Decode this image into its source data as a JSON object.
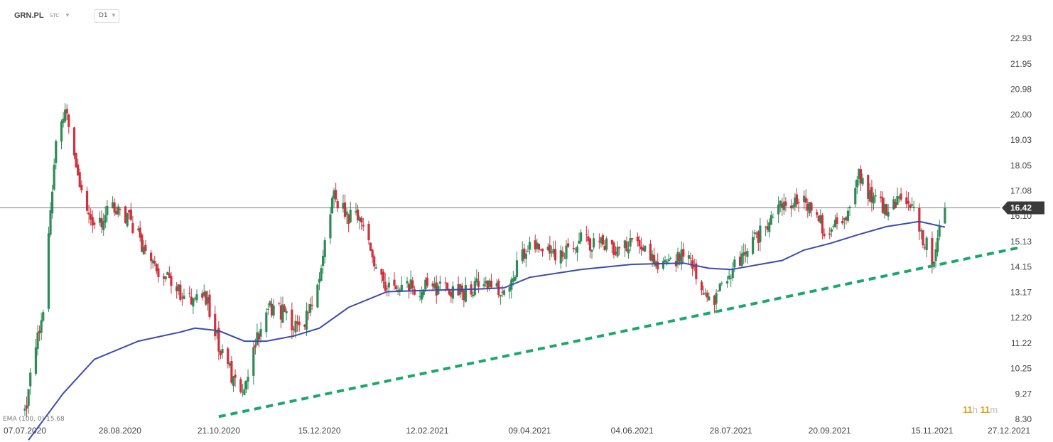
{
  "header": {
    "symbol": "GRN.PL",
    "exchange": "STC",
    "timeframe": "D1"
  },
  "indicator_label": "EMA (100, 0) 15.68",
  "countdown": {
    "hours": "11",
    "h_unit": "h",
    "minutes": "11",
    "m_unit": "m"
  },
  "colors": {
    "up_candle": "#2e8b57",
    "down_candle": "#d0303c",
    "ema_line": "#3a4bb0",
    "trendline": "#1aa86b",
    "price_tag": "#3a3a3a",
    "timer": "#e0a020"
  },
  "chart_data": {
    "type": "candlestick",
    "y_axis_ticks": [
      "22.93",
      "21.95",
      "20.98",
      "20.00",
      "19.03",
      "18.05",
      "17.08",
      "16.10",
      "15.13",
      "14.15",
      "13.17",
      "12.20",
      "11.22",
      "10.25",
      "9.27",
      "8.30"
    ],
    "ylim": [
      8.3,
      22.93
    ],
    "x_axis_ticks": [
      "07.07.2020",
      "28.08.2020",
      "21.10.2020",
      "15.12.2020",
      "12.02.2021",
      "09.04.2021",
      "04.06.2021",
      "28.07.2021",
      "20.09.2021",
      "15.11.2021",
      "27.12.2021"
    ],
    "last_price": "16.42",
    "grid": false,
    "price_path": [
      [
        "07.07.2020",
        8.6
      ],
      [
        "17.07.2020",
        12.5
      ],
      [
        "24.07.2020",
        19.0
      ],
      [
        "30.07.2020",
        20.2
      ],
      [
        "06.08.2020",
        17.4
      ],
      [
        "14.08.2020",
        15.8
      ],
      [
        "28.08.2020",
        16.5
      ],
      [
        "07.09.2020",
        15.3
      ],
      [
        "18.09.2020",
        14.0
      ],
      [
        "30.09.2020",
        13.1
      ],
      [
        "14.10.2020",
        13.0
      ],
      [
        "21.10.2020",
        11.2
      ],
      [
        "28.10.2020",
        10.0
      ],
      [
        "02.11.2020",
        9.0
      ],
      [
        "09.11.2020",
        10.8
      ],
      [
        "16.11.2020",
        12.7
      ],
      [
        "23.11.2020",
        12.5
      ],
      [
        "01.12.2020",
        12.0
      ],
      [
        "08.12.2020",
        12.2
      ],
      [
        "15.12.2020",
        14.0
      ],
      [
        "22.12.2020",
        16.9
      ],
      [
        "31.12.2020",
        16.0
      ],
      [
        "07.01.2021",
        16.1
      ],
      [
        "14.01.2021",
        14.0
      ],
      [
        "21.01.2021",
        13.2
      ],
      [
        "12.02.2021",
        13.4
      ],
      [
        "26.02.2021",
        13.1
      ],
      [
        "12.03.2021",
        13.4
      ],
      [
        "26.03.2021",
        13.2
      ],
      [
        "09.04.2021",
        15.0
      ],
      [
        "23.04.2021",
        14.6
      ],
      [
        "07.05.2021",
        15.2
      ],
      [
        "21.05.2021",
        14.9
      ],
      [
        "04.06.2021",
        15.1
      ],
      [
        "18.06.2021",
        14.2
      ],
      [
        "02.07.2021",
        14.6
      ],
      [
        "09.07.2021",
        14.0
      ],
      [
        "16.07.2021",
        12.7
      ],
      [
        "28.07.2021",
        13.9
      ],
      [
        "11.08.2021",
        15.3
      ],
      [
        "25.08.2021",
        16.6
      ],
      [
        "06.09.2021",
        16.6
      ],
      [
        "20.09.2021",
        15.4
      ],
      [
        "29.09.2021",
        16.2
      ],
      [
        "06.10.2021",
        17.6
      ],
      [
        "14.10.2021",
        16.8
      ],
      [
        "21.10.2021",
        16.2
      ],
      [
        "01.11.2021",
        16.8
      ],
      [
        "08.11.2021",
        15.7
      ],
      [
        "15.11.2021",
        14.4
      ],
      [
        "22.11.2021",
        16.42
      ]
    ],
    "ema100_path": [
      [
        "09.07.2020",
        7.5
      ],
      [
        "28.07.2020",
        9.3
      ],
      [
        "14.08.2020",
        10.6
      ],
      [
        "07.09.2020",
        11.3
      ],
      [
        "30.09.2020",
        11.65
      ],
      [
        "08.10.2020",
        11.8
      ],
      [
        "21.10.2020",
        11.7
      ],
      [
        "04.11.2020",
        11.3
      ],
      [
        "16.11.2020",
        11.3
      ],
      [
        "01.12.2020",
        11.5
      ],
      [
        "15.12.2020",
        11.8
      ],
      [
        "31.12.2020",
        12.6
      ],
      [
        "21.01.2021",
        13.2
      ],
      [
        "12.02.2021",
        13.25
      ],
      [
        "12.03.2021",
        13.3
      ],
      [
        "26.03.2021",
        13.35
      ],
      [
        "09.04.2021",
        13.75
      ],
      [
        "07.05.2021",
        14.05
      ],
      [
        "04.06.2021",
        14.25
      ],
      [
        "02.07.2021",
        14.3
      ],
      [
        "16.07.2021",
        14.1
      ],
      [
        "28.07.2021",
        14.05
      ],
      [
        "25.08.2021",
        14.4
      ],
      [
        "06.09.2021",
        14.8
      ],
      [
        "20.09.2021",
        15.05
      ],
      [
        "06.10.2021",
        15.4
      ],
      [
        "21.10.2021",
        15.7
      ],
      [
        "08.11.2021",
        15.9
      ],
      [
        "22.11.2021",
        15.68
      ]
    ],
    "trendline": {
      "start": [
        "21.10.2020",
        8.4
      ],
      "end": [
        "02.01.2022",
        14.9
      ]
    },
    "ema_label": "EMA (100, 0)",
    "ema_value": 15.68
  }
}
